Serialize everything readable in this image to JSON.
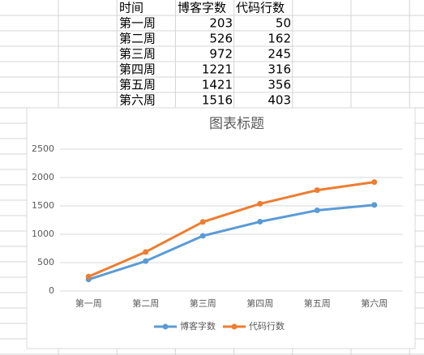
{
  "table": {
    "header": [
      "时间",
      "博客字数",
      "代码行数"
    ],
    "rows": [
      [
        "第一周",
        "203",
        "50"
      ],
      [
        "第二周",
        "526",
        "162"
      ],
      [
        "第三周",
        "972",
        "245"
      ],
      [
        "第四周",
        "1221",
        "316"
      ],
      [
        "第五周",
        "1421",
        "356"
      ],
      [
        "第六周",
        "1516",
        "403"
      ]
    ]
  },
  "chart_data": {
    "type": "line",
    "stacked": true,
    "title": "图表标题",
    "categories": [
      "第一周",
      "第二周",
      "第三周",
      "第四周",
      "第五周",
      "第六周"
    ],
    "series": [
      {
        "name": "博客字数",
        "color": "#5b9bd5",
        "values": [
          203,
          526,
          972,
          1221,
          1421,
          1516
        ]
      },
      {
        "name": "代码行数",
        "color": "#ed7d31",
        "values": [
          50,
          162,
          245,
          316,
          356,
          403
        ]
      }
    ],
    "ylim": [
      0,
      2500
    ],
    "yticks": [
      0,
      500,
      1000,
      1500,
      2000,
      2500
    ],
    "grid": true,
    "legend": "bottom"
  }
}
